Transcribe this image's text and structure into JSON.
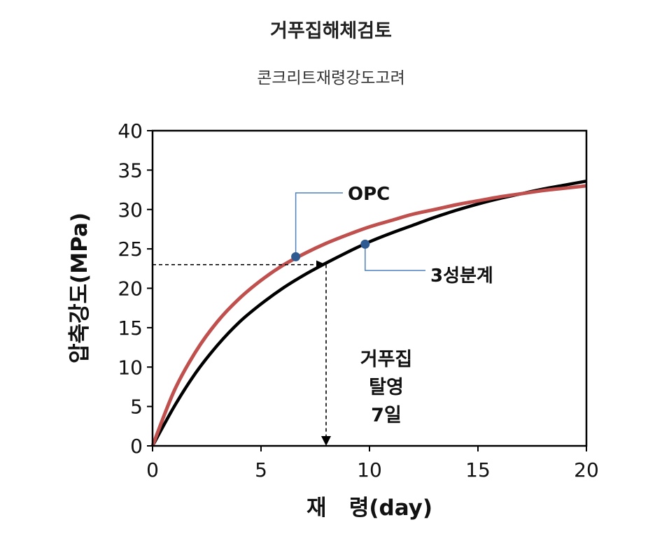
{
  "title": "거푸집해체검토",
  "subtitle": "콘크리트재령강도고려",
  "chart_data": {
    "type": "line",
    "xlabel": "재   령(day)",
    "ylabel": "압축강도(MPa)",
    "xlim": [
      0,
      20
    ],
    "ylim": [
      0,
      40
    ],
    "xticks": [
      0,
      5,
      10,
      15,
      20
    ],
    "yticks": [
      0,
      5,
      10,
      15,
      20,
      25,
      30,
      35,
      40
    ],
    "grid": false,
    "series": [
      {
        "name": "OPC",
        "color": "#c0504d",
        "x": [
          0,
          1,
          2,
          3,
          4,
          5,
          6,
          7,
          8,
          9,
          10,
          11,
          12,
          13,
          14,
          15,
          16,
          17,
          18,
          19,
          20
        ],
        "y": [
          0,
          7,
          12,
          15.8,
          18.7,
          21,
          22.9,
          24.4,
          25.7,
          26.8,
          27.8,
          28.6,
          29.4,
          30,
          30.6,
          31.1,
          31.6,
          32,
          32.4,
          32.7,
          33
        ]
      },
      {
        "name": "3성분계",
        "color": "#000000",
        "x": [
          0,
          1,
          2,
          3,
          4,
          5,
          6,
          7,
          8,
          9,
          10,
          11,
          12,
          13,
          14,
          15,
          16,
          17,
          18,
          19,
          20
        ],
        "y": [
          0,
          5,
          9.3,
          12.8,
          15.7,
          18,
          20,
          21.7,
          23.2,
          24.6,
          25.9,
          27,
          28,
          29,
          29.9,
          30.7,
          31.4,
          32,
          32.6,
          33.1,
          33.6
        ]
      }
    ],
    "markers": [
      {
        "series": "OPC",
        "x": 6.6,
        "y": 24,
        "label": "OPC"
      },
      {
        "series": "3성분계",
        "x": 9.8,
        "y": 25.6,
        "label": "3성분계"
      }
    ],
    "reference": {
      "x": 8,
      "y": 23
    },
    "annotation_lines": [
      "거푸집",
      "탈영",
      "7일"
    ],
    "marker_color": "#2e5a92",
    "callout_color": "#4f81bd"
  }
}
